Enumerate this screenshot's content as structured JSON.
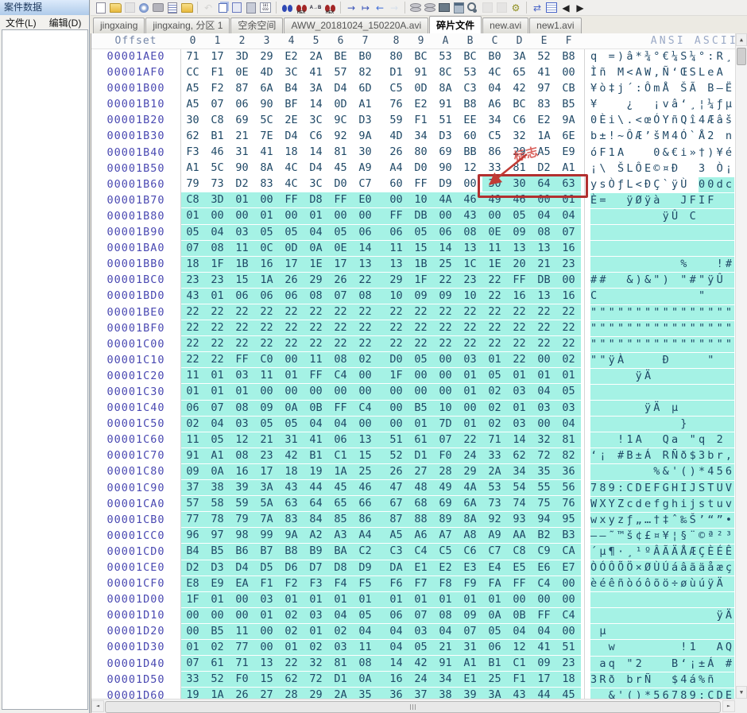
{
  "sidebar": {
    "title": "案件数据",
    "menu": [
      {
        "label": "文件(L)"
      },
      {
        "label": "编辑(D)"
      }
    ]
  },
  "toolbar": {
    "items": [
      {
        "name": "new-file-icon",
        "style": "page"
      },
      {
        "name": "open-folder-icon",
        "style": "folder"
      },
      {
        "name": "save-icon",
        "style": "floppy",
        "disabled": true
      },
      {
        "name": "disc-icon",
        "style": "disc"
      },
      {
        "name": "camera-icon",
        "style": "cam"
      },
      {
        "name": "properties-icon",
        "style": "props"
      },
      {
        "name": "save-as-folder-icon",
        "style": "folder"
      },
      {
        "type": "sep"
      },
      {
        "name": "undo-icon",
        "glyph": "↶",
        "gcolor": "#ACACAC",
        "disabled": true
      },
      {
        "name": "copy-icon",
        "style": "copy"
      },
      {
        "name": "paste-into-icon",
        "style": "paste"
      },
      {
        "name": "clipboard-icon",
        "style": "clip"
      },
      {
        "name": "copy-binary-icon",
        "style": "binary",
        "text": "101 010"
      },
      {
        "type": "sep"
      },
      {
        "name": "find-icon",
        "style": "binb"
      },
      {
        "name": "find-hex-icon",
        "style": "binr",
        "label": "HEX"
      },
      {
        "name": "replace-icon",
        "style": "rep",
        "text": "A→B"
      },
      {
        "name": "replace-hex-icon",
        "style": "binr",
        "label": "HEX"
      },
      {
        "type": "sep"
      },
      {
        "name": "goto-offset-icon",
        "glyph": "→",
        "gcolor": "#3852B8"
      },
      {
        "name": "goto-end-icon",
        "glyph": "↦",
        "gcolor": "#3852B8"
      },
      {
        "name": "back-icon",
        "glyph": "←",
        "gcolor": "#3E6CD8"
      },
      {
        "name": "forward-icon",
        "glyph": "→",
        "gcolor": "#AFC8EA",
        "disabled": true
      },
      {
        "type": "sep"
      },
      {
        "name": "disk-tools-icon",
        "style": "disks"
      },
      {
        "name": "disk-clone-icon",
        "style": "disks"
      },
      {
        "name": "ram-icon",
        "style": "chip"
      },
      {
        "name": "calculator-icon",
        "style": "calc"
      },
      {
        "name": "magnifier-icon",
        "style": "ring"
      },
      {
        "name": "analysis-icon",
        "style": "gray",
        "disabled": true
      },
      {
        "name": "filter-icon",
        "style": "gray",
        "disabled": true
      },
      {
        "name": "gear-icon",
        "glyph": "⚙",
        "gcolor": "#8F8F20"
      },
      {
        "type": "sep"
      },
      {
        "name": "sync-windows-icon",
        "glyph": "⇄",
        "gcolor": "#4A66C8"
      },
      {
        "name": "window-details-icon",
        "style": "winlist"
      },
      {
        "name": "tab-scroll-left-icon",
        "glyph": "◀",
        "gcolor": "#222"
      },
      {
        "name": "tab-scroll-right-icon",
        "glyph": "▶",
        "gcolor": "#222"
      }
    ]
  },
  "tabs": [
    {
      "label": "jingxaing",
      "active": false
    },
    {
      "label": "jingxaing, 分区 1",
      "active": false
    },
    {
      "label": "空余空间",
      "active": false
    },
    {
      "label": "AWW_20181024_150220A.avi",
      "active": false
    },
    {
      "label": "碎片文件",
      "active": true
    },
    {
      "label": "new.avi",
      "active": false
    },
    {
      "label": "new1.avi",
      "active": false
    }
  ],
  "hex_view": {
    "headers": {
      "offset": "Offset",
      "columns": [
        "0",
        "1",
        "2",
        "3",
        "4",
        "5",
        "6",
        "7",
        "8",
        "9",
        "A",
        "B",
        "C",
        "D",
        "E",
        "F"
      ],
      "ascii": "ANSI ASCII"
    },
    "selection": {
      "row_index": 8,
      "byte_index": 12,
      "color": "#A5F2E5"
    },
    "annotation": {
      "label": "标志",
      "boxed_bytes": "30 30 64 63",
      "color": "#B23030"
    },
    "rows": [
      {
        "offset": "00001AE0",
        "bytes": "71 17 3D 29 E2 2A BE B0 80 BC 53 BC B0 3A 52 B8",
        "ascii": "q =)â*¾°€¼S¼°:R¸"
      },
      {
        "offset": "00001AF0",
        "bytes": "CC F1 0E 4D 3C 41 57 82 D1 91 8C 53 4C 65 41 00",
        "ascii": "Ìñ M<AW‚Ñ‘ŒSLeA "
      },
      {
        "offset": "00001B00",
        "bytes": "A5 F2 87 6A B4 3A D4 6D C5 0D 8A C3 04 42 97 CB",
        "ascii": "¥ò‡j´:ÔmÅ ŠÃ B—Ë"
      },
      {
        "offset": "00001B10",
        "bytes": "A5 07 06 90 BF 14 0D A1 76 E2 91 B8 A6 BC 83 B5",
        "ascii": "¥   ¿  ¡vâ‘¸¦¼ƒµ"
      },
      {
        "offset": "00001B20",
        "bytes": "30 C8 69 5C 2E 3C 9C D3 59 F1 51 EE 34 C6 E2 9A",
        "ascii": "0Èi\\.<œÓYñQî4Æâš"
      },
      {
        "offset": "00001B30",
        "bytes": "62 B1 21 7E D4 C6 92 9A 4D 34 D3 60 C5 32 1A 6E",
        "ascii": "b±!~ÔÆ’šM4Ó`Å2 n"
      },
      {
        "offset": "00001B40",
        "bytes": "F3 46 31 41 18 14 81 30 26 80 69 BB 86 29 A5 E9",
        "ascii": "óF1A   0&€i»†)¥é"
      },
      {
        "offset": "00001B50",
        "bytes": "A1 5C 90 8A 4C D4 45 A9 A4 D0 90 12 33 81 D2 A1",
        "ascii": "¡\\ ŠLÔE©¤Ð  3 Ò¡"
      },
      {
        "offset": "00001B60",
        "bytes": "79 73 D2 83 4C 3C D0 C7 60 FF D9 00 30 30 64 63",
        "ascii": "ysÒƒL<ÐÇ`ÿÙ 00dc"
      },
      {
        "offset": "00001B70",
        "bytes": "C8 3D 01 00 FF D8 FF E0 00 10 4A 46 49 46 00 01",
        "ascii": "È=  ÿØÿà  JFIF  "
      },
      {
        "offset": "00001B80",
        "bytes": "01 00 00 01 00 01 00 00 FF DB 00 43 00 05 04 04",
        "ascii": "        ÿÛ C    "
      },
      {
        "offset": "00001B90",
        "bytes": "05 04 03 05 05 04 05 06 06 05 06 08 0E 09 08 07",
        "ascii": "                "
      },
      {
        "offset": "00001BA0",
        "bytes": "07 08 11 0C 0D 0A 0E 14 11 15 14 13 11 13 13 16",
        "ascii": "                "
      },
      {
        "offset": "00001BB0",
        "bytes": "18 1F 1B 16 17 1E 17 13 13 1B 25 1C 1E 20 21 23",
        "ascii": "          %   !#"
      },
      {
        "offset": "00001BC0",
        "bytes": "23 23 15 1A 26 29 26 22 29 1F 22 23 22 FF DB 00",
        "ascii": "##  &)&\") \"#\"ÿÛ "
      },
      {
        "offset": "00001BD0",
        "bytes": "43 01 06 06 06 08 07 08 10 09 09 10 22 16 13 16",
        "ascii": "C           \"   "
      },
      {
        "offset": "00001BE0",
        "bytes": "22 22 22 22 22 22 22 22 22 22 22 22 22 22 22 22",
        "ascii": "\"\"\"\"\"\"\"\"\"\"\"\"\"\"\"\""
      },
      {
        "offset": "00001BF0",
        "bytes": "22 22 22 22 22 22 22 22 22 22 22 22 22 22 22 22",
        "ascii": "\"\"\"\"\"\"\"\"\"\"\"\"\"\"\"\""
      },
      {
        "offset": "00001C00",
        "bytes": "22 22 22 22 22 22 22 22 22 22 22 22 22 22 22 22",
        "ascii": "\"\"\"\"\"\"\"\"\"\"\"\"\"\"\"\""
      },
      {
        "offset": "00001C10",
        "bytes": "22 22 FF C0 00 11 08 02 D0 05 00 03 01 22 00 02",
        "ascii": "\"\"ÿÀ    Ð    \"  "
      },
      {
        "offset": "00001C20",
        "bytes": "11 01 03 11 01 FF C4 00 1F 00 00 01 05 01 01 01",
        "ascii": "     ÿÄ         "
      },
      {
        "offset": "00001C30",
        "bytes": "01 01 01 00 00 00 00 00 00 00 00 01 02 03 04 05",
        "ascii": "                "
      },
      {
        "offset": "00001C40",
        "bytes": "06 07 08 09 0A 0B FF C4 00 B5 10 00 02 01 03 03",
        "ascii": "      ÿÄ µ      "
      },
      {
        "offset": "00001C50",
        "bytes": "02 04 03 05 05 04 04 00 00 01 7D 01 02 03 00 04",
        "ascii": "          }     "
      },
      {
        "offset": "00001C60",
        "bytes": "11 05 12 21 31 41 06 13 51 61 07 22 71 14 32 81",
        "ascii": "   !1A  Qa \"q 2 "
      },
      {
        "offset": "00001C70",
        "bytes": "91 A1 08 23 42 B1 C1 15 52 D1 F0 24 33 62 72 82",
        "ascii": "‘¡ #B±Á RÑð$3br‚"
      },
      {
        "offset": "00001C80",
        "bytes": "09 0A 16 17 18 19 1A 25 26 27 28 29 2A 34 35 36",
        "ascii": "       %&'()*456"
      },
      {
        "offset": "00001C90",
        "bytes": "37 38 39 3A 43 44 45 46 47 48 49 4A 53 54 55 56",
        "ascii": "789:CDEFGHIJSTUV"
      },
      {
        "offset": "00001CA0",
        "bytes": "57 58 59 5A 63 64 65 66 67 68 69 6A 73 74 75 76",
        "ascii": "WXYZcdefghijstuv"
      },
      {
        "offset": "00001CB0",
        "bytes": "77 78 79 7A 83 84 85 86 87 88 89 8A 92 93 94 95",
        "ascii": "wxyzƒ„…†‡ˆ‰Š’“”•"
      },
      {
        "offset": "00001CC0",
        "bytes": "96 97 98 99 9A A2 A3 A4 A5 A6 A7 A8 A9 AA B2 B3",
        "ascii": "–—˜™š¢£¤¥¦§¨©ª²³"
      },
      {
        "offset": "00001CD0",
        "bytes": "B4 B5 B6 B7 B8 B9 BA C2 C3 C4 C5 C6 C7 C8 C9 CA",
        "ascii": "´µ¶·¸¹ºÂÃÄÅÆÇÈÉÊ"
      },
      {
        "offset": "00001CE0",
        "bytes": "D2 D3 D4 D5 D6 D7 D8 D9 DA E1 E2 E3 E4 E5 E6 E7",
        "ascii": "ÒÓÔÕÖ×ØÙÚáâãäåæç"
      },
      {
        "offset": "00001CF0",
        "bytes": "E8 E9 EA F1 F2 F3 F4 F5 F6 F7 F8 F9 FA FF C4 00",
        "ascii": "èéêñòóôõö÷øùúÿÄ "
      },
      {
        "offset": "00001D00",
        "bytes": "1F 01 00 03 01 01 01 01 01 01 01 01 01 00 00 00",
        "ascii": "                "
      },
      {
        "offset": "00001D10",
        "bytes": "00 00 00 01 02 03 04 05 06 07 08 09 0A 0B FF C4",
        "ascii": "              ÿÄ"
      },
      {
        "offset": "00001D20",
        "bytes": "00 B5 11 00 02 01 02 04 04 03 04 07 05 04 04 00",
        "ascii": " µ              "
      },
      {
        "offset": "00001D30",
        "bytes": "01 02 77 00 01 02 03 11 04 05 21 31 06 12 41 51",
        "ascii": "  w       !1  AQ"
      },
      {
        "offset": "00001D40",
        "bytes": "07 61 71 13 22 32 81 08 14 42 91 A1 B1 C1 09 23",
        "ascii": " aq \"2   B‘¡±Á #"
      },
      {
        "offset": "00001D50",
        "bytes": "33 52 F0 15 62 72 D1 0A 16 24 34 E1 25 F1 17 18",
        "ascii": "3Rð brÑ  $4á%ñ  "
      },
      {
        "offset": "00001D60",
        "bytes": "19 1A 26 27 28 29 2A 35 36 37 38 39 3A 43 44 45",
        "ascii": "  &'()*56789:CDE"
      }
    ]
  },
  "scrollbar_glyphs": {
    "up": "▲",
    "down": "▼",
    "left": "◄",
    "right": "►"
  }
}
